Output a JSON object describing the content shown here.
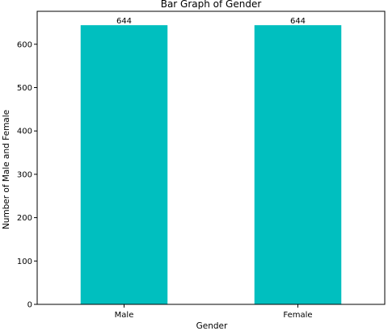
{
  "chart_data": {
    "type": "bar",
    "title": "Bar Graph of Gender",
    "xlabel": "Gender",
    "ylabel": "Number of Male and Female",
    "categories": [
      "Male",
      "Female"
    ],
    "values": [
      644,
      644
    ],
    "data_labels": [
      "644",
      "644"
    ],
    "ylim": [
      0,
      676
    ],
    "yticks": [
      "0",
      "100",
      "200",
      "300",
      "400",
      "500",
      "600"
    ],
    "bar_color": "#00bfbf",
    "grid": false,
    "legend": "none"
  }
}
